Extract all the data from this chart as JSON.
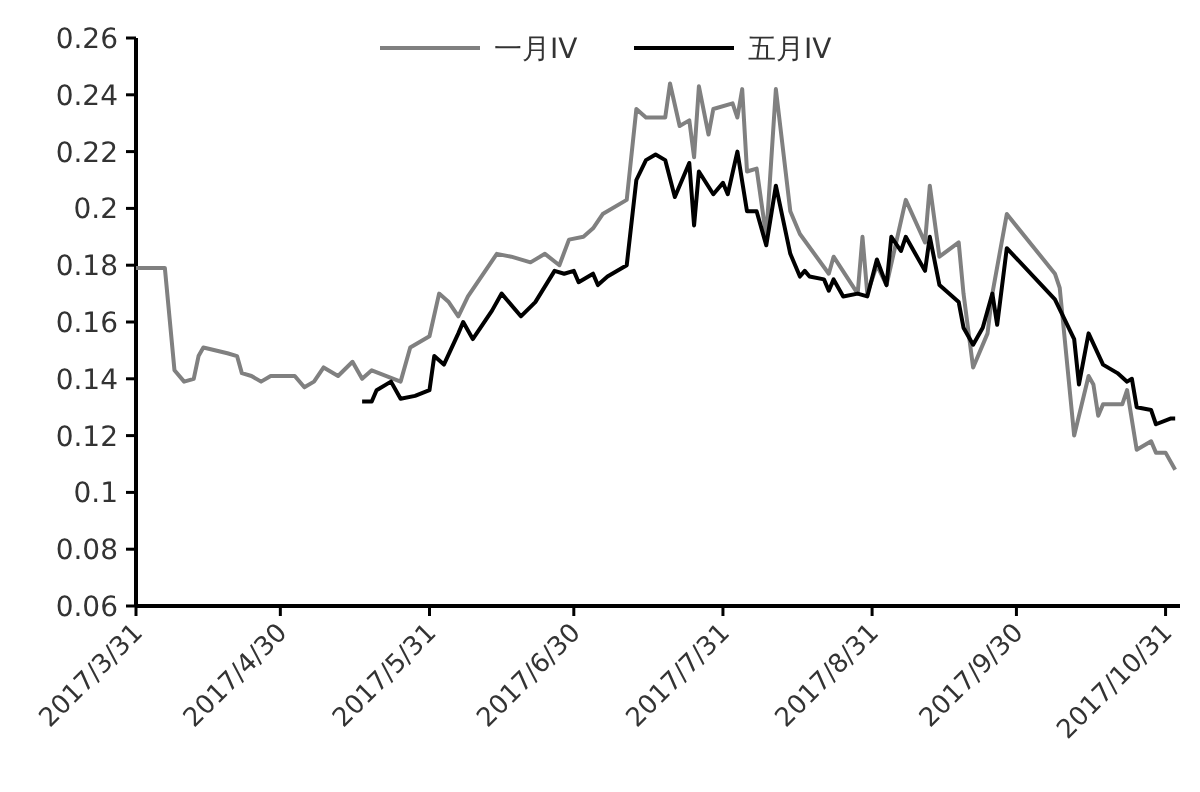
{
  "chart_data": {
    "type": "line",
    "legend": "top",
    "grid": false,
    "marker": "none",
    "line_style": "solid",
    "xlim": [
      "2017-03-31",
      "2017-11-03"
    ],
    "xticks": [
      {
        "value": "2017-03-31",
        "label": "2017/3/31"
      },
      {
        "value": "2017-04-30",
        "label": "2017/4/30"
      },
      {
        "value": "2017-05-31",
        "label": "2017/5/31"
      },
      {
        "value": "2017-06-30",
        "label": "2017/6/30"
      },
      {
        "value": "2017-07-31",
        "label": "2017/7/31"
      },
      {
        "value": "2017-08-31",
        "label": "2017/8/31"
      },
      {
        "value": "2017-09-30",
        "label": "2017/9/30"
      },
      {
        "value": "2017-10-31",
        "label": "2017/10/31"
      }
    ],
    "ylim": [
      0.06,
      0.26
    ],
    "yticks": [
      0.06,
      0.08,
      0.1,
      0.12,
      0.14,
      0.16,
      0.18,
      0.2,
      0.22,
      0.24,
      0.26
    ],
    "series": [
      {
        "name": "一月IV",
        "color": "#808080",
        "x": [
          "2017-03-31",
          "2017-04-06",
          "2017-04-08",
          "2017-04-10",
          "2017-04-12",
          "2017-04-13",
          "2017-04-14",
          "2017-04-19",
          "2017-04-21",
          "2017-04-22",
          "2017-04-24",
          "2017-04-26",
          "2017-04-28",
          "2017-05-03",
          "2017-05-05",
          "2017-05-07",
          "2017-05-09",
          "2017-05-12",
          "2017-05-15",
          "2017-05-17",
          "2017-05-19",
          "2017-05-25",
          "2017-05-27",
          "2017-05-31",
          "2017-06-02",
          "2017-06-04",
          "2017-06-06",
          "2017-06-08",
          "2017-06-14",
          "2017-06-17",
          "2017-06-21",
          "2017-06-24",
          "2017-06-27",
          "2017-06-29",
          "2017-07-02",
          "2017-07-04",
          "2017-07-06",
          "2017-07-11",
          "2017-07-13",
          "2017-07-15",
          "2017-07-19",
          "2017-07-20",
          "2017-07-22",
          "2017-07-24",
          "2017-07-25",
          "2017-07-26",
          "2017-07-28",
          "2017-07-29",
          "2017-08-02",
          "2017-08-03",
          "2017-08-04",
          "2017-08-05",
          "2017-08-07",
          "2017-08-09",
          "2017-08-11",
          "2017-08-14",
          "2017-08-16",
          "2017-08-22",
          "2017-08-23",
          "2017-08-28",
          "2017-08-29",
          "2017-08-30",
          "2017-09-01",
          "2017-09-03",
          "2017-09-07",
          "2017-09-11",
          "2017-09-12",
          "2017-09-14",
          "2017-09-18",
          "2017-09-19",
          "2017-09-21",
          "2017-09-24",
          "2017-09-25",
          "2017-09-28",
          "2017-10-08",
          "2017-10-09",
          "2017-10-12",
          "2017-10-15",
          "2017-10-16",
          "2017-10-17",
          "2017-10-18",
          "2017-10-22",
          "2017-10-23",
          "2017-10-25",
          "2017-10-28",
          "2017-10-29",
          "2017-10-31",
          "2017-11-02"
        ],
        "values": [
          0.179,
          0.179,
          0.143,
          0.139,
          0.14,
          0.148,
          0.151,
          0.149,
          0.148,
          0.142,
          0.141,
          0.139,
          0.141,
          0.141,
          0.137,
          0.139,
          0.144,
          0.141,
          0.146,
          0.14,
          0.143,
          0.139,
          0.151,
          0.155,
          0.17,
          0.167,
          0.162,
          0.169,
          0.184,
          0.183,
          0.181,
          0.184,
          0.18,
          0.189,
          0.19,
          0.193,
          0.198,
          0.203,
          0.235,
          0.232,
          0.232,
          0.244,
          0.229,
          0.231,
          0.218,
          0.243,
          0.226,
          0.235,
          0.237,
          0.232,
          0.242,
          0.213,
          0.214,
          0.19,
          0.242,
          0.199,
          0.191,
          0.177,
          0.183,
          0.17,
          0.19,
          0.17,
          0.18,
          0.173,
          0.203,
          0.188,
          0.208,
          0.183,
          0.188,
          0.17,
          0.144,
          0.156,
          0.17,
          0.198,
          0.177,
          0.172,
          0.12,
          0.141,
          0.138,
          0.127,
          0.131,
          0.131,
          0.136,
          0.115,
          0.118,
          0.114,
          0.114,
          0.108
        ]
      },
      {
        "name": "五月IV",
        "color": "#000000",
        "x": [
          "2017-05-17",
          "2017-05-19",
          "2017-05-20",
          "2017-05-23",
          "2017-05-25",
          "2017-05-28",
          "2017-05-31",
          "2017-06-01",
          "2017-06-03",
          "2017-06-06",
          "2017-06-07",
          "2017-06-09",
          "2017-06-13",
          "2017-06-15",
          "2017-06-19",
          "2017-06-22",
          "2017-06-26",
          "2017-06-28",
          "2017-06-30",
          "2017-07-01",
          "2017-07-04",
          "2017-07-05",
          "2017-07-07",
          "2017-07-11",
          "2017-07-13",
          "2017-07-15",
          "2017-07-17",
          "2017-07-19",
          "2017-07-21",
          "2017-07-24",
          "2017-07-25",
          "2017-07-26",
          "2017-07-29",
          "2017-07-31",
          "2017-08-01",
          "2017-08-03",
          "2017-08-05",
          "2017-08-07",
          "2017-08-09",
          "2017-08-11",
          "2017-08-14",
          "2017-08-16",
          "2017-08-17",
          "2017-08-18",
          "2017-08-21",
          "2017-08-22",
          "2017-08-23",
          "2017-08-25",
          "2017-08-28",
          "2017-08-30",
          "2017-09-01",
          "2017-09-03",
          "2017-09-04",
          "2017-09-06",
          "2017-09-07",
          "2017-09-11",
          "2017-09-12",
          "2017-09-14",
          "2017-09-18",
          "2017-09-19",
          "2017-09-21",
          "2017-09-23",
          "2017-09-25",
          "2017-09-26",
          "2017-09-28",
          "2017-10-08",
          "2017-10-12",
          "2017-10-13",
          "2017-10-15",
          "2017-10-18",
          "2017-10-21",
          "2017-10-23",
          "2017-10-24",
          "2017-10-25",
          "2017-10-28",
          "2017-10-29",
          "2017-11-01",
          "2017-11-02"
        ],
        "values": [
          0.132,
          0.132,
          0.136,
          0.139,
          0.133,
          0.134,
          0.136,
          0.148,
          0.145,
          0.156,
          0.16,
          0.154,
          0.164,
          0.17,
          0.162,
          0.167,
          0.178,
          0.177,
          0.178,
          0.174,
          0.177,
          0.173,
          0.176,
          0.18,
          0.21,
          0.217,
          0.219,
          0.217,
          0.204,
          0.216,
          0.194,
          0.213,
          0.205,
          0.209,
          0.205,
          0.22,
          0.199,
          0.199,
          0.187,
          0.208,
          0.184,
          0.176,
          0.178,
          0.176,
          0.175,
          0.171,
          0.175,
          0.169,
          0.17,
          0.169,
          0.182,
          0.173,
          0.19,
          0.185,
          0.19,
          0.178,
          0.19,
          0.173,
          0.167,
          0.158,
          0.152,
          0.158,
          0.17,
          0.159,
          0.186,
          0.168,
          0.154,
          0.138,
          0.156,
          0.145,
          0.142,
          0.139,
          0.14,
          0.13,
          0.129,
          0.124,
          0.126,
          0.126
        ]
      }
    ]
  }
}
